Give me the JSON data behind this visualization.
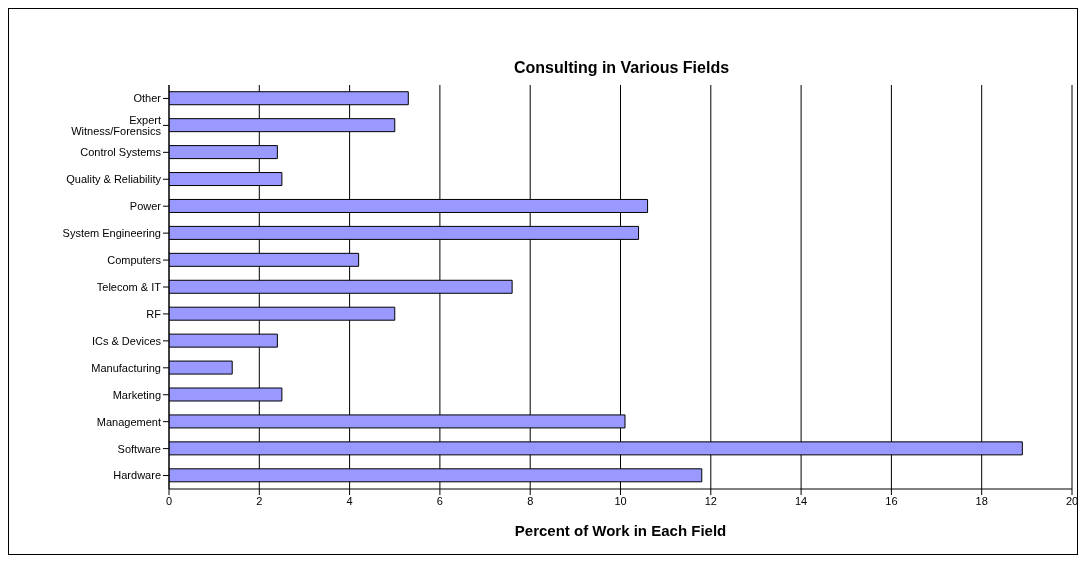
{
  "chart_data": {
    "type": "bar",
    "orientation": "horizontal",
    "title": "Consulting in Various Fields",
    "xlabel": "Percent of Work in Each Field",
    "categories": [
      "Other",
      "Expert Witness/Forensics",
      "Control Systems",
      "Quality & Reliability",
      "Power",
      "System Engineering",
      "Computers",
      "Telecom & IT",
      "RF",
      "ICs & Devices",
      "Manufacturing",
      "Marketing",
      "Management",
      "Software",
      "Hardware"
    ],
    "values": [
      5.3,
      5.0,
      2.4,
      2.5,
      10.6,
      10.4,
      4.2,
      7.6,
      5.0,
      2.4,
      1.4,
      2.5,
      10.1,
      18.9,
      11.8
    ],
    "color": "#9999ff",
    "xlim": [
      0,
      20
    ],
    "xticks": [
      0,
      2,
      4,
      6,
      8,
      10,
      12,
      14,
      16,
      18,
      20
    ],
    "grid": "x",
    "legend": false
  }
}
